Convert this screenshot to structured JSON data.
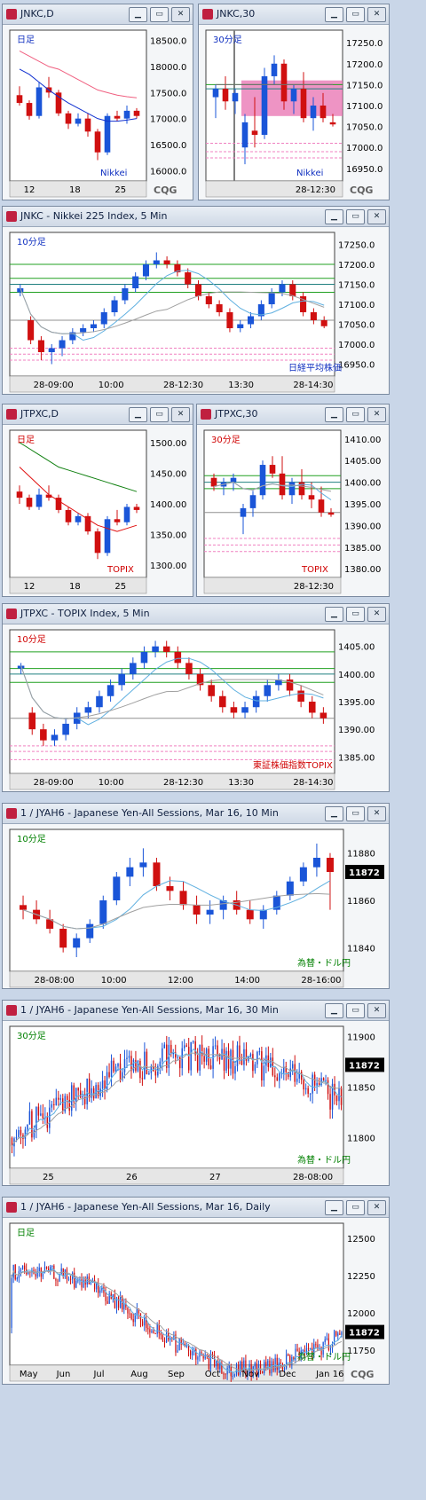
{
  "windows": [
    {
      "id": "jnkc-d",
      "title": "JNKC,D",
      "tf_label": "日足",
      "index_label": "Nikkei",
      "y_ticks": [
        "18500.0",
        "18000.0",
        "17500.0",
        "17000.0",
        "16500.0",
        "16000.0"
      ],
      "x_ticks": [
        "12",
        "18",
        "25"
      ],
      "logo": "CQG"
    },
    {
      "id": "jnkc-30",
      "title": "JNKC,30",
      "tf_label": "30分足",
      "index_label": "Nikkei",
      "y_ticks": [
        "17250.0",
        "17200.0",
        "17150.0",
        "17100.0",
        "17050.0",
        "17000.0",
        "16950.0"
      ],
      "x_ticks": [
        "28-12:30"
      ],
      "logo": "CQG"
    },
    {
      "id": "jnkc-5",
      "title": "JNKC - Nikkei 225 Index, 5 Min",
      "tf_label": "10分足",
      "index_label": "日経平均株価",
      "y_ticks": [
        "17250.0",
        "17200.0",
        "17150.0",
        "17100.0",
        "17050.0",
        "17000.0",
        "16950.0"
      ],
      "x_ticks": [
        "28-09:00",
        "10:00",
        "28-12:30",
        "13:30",
        "28-14:30"
      ]
    },
    {
      "id": "jtpxc-d",
      "title": "JTPXC,D",
      "tf_label": "日足",
      "index_label": "TOPIX",
      "y_ticks": [
        "1500.00",
        "1450.00",
        "1400.00",
        "1350.00",
        "1300.00"
      ],
      "x_ticks": [
        "12",
        "18",
        "25"
      ]
    },
    {
      "id": "jtpxc-30",
      "title": "JTPXC,30",
      "tf_label": "30分足",
      "index_label": "TOPIX",
      "y_ticks": [
        "1410.00",
        "1405.00",
        "1400.00",
        "1395.00",
        "1390.00",
        "1385.00",
        "1380.00"
      ],
      "x_ticks": [
        "28-12:30"
      ]
    },
    {
      "id": "jtpxc-5",
      "title": "JTPXC - TOPIX Index, 5 Min",
      "tf_label": "10分足",
      "index_label": "東証株価指数TOPIX",
      "y_ticks": [
        "1405.00",
        "1400.00",
        "1395.00",
        "1390.00",
        "1385.00"
      ],
      "x_ticks": [
        "28-09:00",
        "10:00",
        "28-12:30",
        "13:30",
        "28-14:30"
      ]
    },
    {
      "id": "jyah6-10",
      "title": "1 / JYAH6 - Japanese Yen-All Sessions, Mar 16, 10 Min",
      "tf_label": "10分足",
      "index_label": "為替・ドル円",
      "y_ticks": [
        "11880",
        "11860",
        "11840"
      ],
      "x_ticks": [
        "28-08:00",
        "10:00",
        "12:00",
        "14:00",
        "28-16:00"
      ],
      "last_price": "11872"
    },
    {
      "id": "jyah6-30",
      "title": "1 / JYAH6 - Japanese Yen-All Sessions, Mar 16, 30 Min",
      "tf_label": "30分足",
      "index_label": "為替・ドル円",
      "y_ticks": [
        "11900",
        "11850",
        "11800"
      ],
      "x_ticks": [
        "25",
        "26",
        "27",
        "28-08:00"
      ],
      "last_price": "11872"
    },
    {
      "id": "jyah6-d",
      "title": "1 / JYAH6 - Japanese Yen-All Sessions, Mar 16, Daily",
      "tf_label": "日足",
      "index_label": "為替・ドル円",
      "y_ticks": [
        "12500",
        "12250",
        "12000",
        "11750"
      ],
      "x_ticks": [
        "May",
        "Jun",
        "Jul",
        "Aug",
        "Sep",
        "Oct",
        "Nov",
        "Dec",
        "Jan 16"
      ],
      "last_price": "11872",
      "logo": "CQG"
    }
  ],
  "chart_data": [
    {
      "type": "candlestick",
      "title": "JNKC,D",
      "ylim": [
        15800,
        18700
      ],
      "candles": [
        [
          17450,
          17620,
          17250,
          17300
        ],
        [
          17300,
          17350,
          16980,
          17050
        ],
        [
          17050,
          17700,
          17000,
          17600
        ],
        [
          17600,
          17800,
          17400,
          17500
        ],
        [
          17500,
          17550,
          17050,
          17100
        ],
        [
          17100,
          17150,
          16800,
          16900
        ],
        [
          16900,
          17100,
          16850,
          17000
        ],
        [
          17000,
          17100,
          16650,
          16750
        ],
        [
          16750,
          16800,
          16200,
          16350
        ],
        [
          16350,
          17100,
          16300,
          17050
        ],
        [
          17050,
          17150,
          16950,
          17000
        ],
        [
          17000,
          17250,
          16900,
          17150
        ],
        [
          17150,
          17200,
          17000,
          17050
        ]
      ],
      "series": [
        {
          "name": "",
          "values": [
            18300,
            18200,
            18100,
            18000,
            17950,
            17850,
            17750,
            17650,
            17550,
            17500,
            17450,
            17420,
            17400
          ]
        },
        {
          "name": "",
          "values": [
            17950,
            17850,
            17700,
            17550,
            17420,
            17300,
            17200,
            17100,
            17000,
            16950,
            16950,
            16970,
            17000
          ]
        }
      ]
    },
    {
      "type": "candlestick",
      "title": "JNKC,30",
      "ylim": [
        16920,
        17280
      ],
      "candles": [
        [
          17120,
          17150,
          17070,
          17140
        ],
        [
          17140,
          17170,
          17090,
          17110
        ],
        [
          17110,
          17140,
          17080,
          17130
        ],
        [
          17000,
          17080,
          16960,
          17060
        ],
        [
          17040,
          17120,
          17000,
          17030
        ],
        [
          17030,
          17190,
          17020,
          17170
        ],
        [
          17170,
          17220,
          17150,
          17200
        ],
        [
          17200,
          17210,
          17090,
          17110
        ],
        [
          17110,
          17150,
          17080,
          17140
        ],
        [
          17140,
          17180,
          17060,
          17070
        ],
        [
          17070,
          17120,
          17040,
          17100
        ],
        [
          17100,
          17130,
          17060,
          17070
        ],
        [
          17060,
          17080,
          17050,
          17055
        ]
      ],
      "series": [
        {
          "name": "",
          "values": [
            17150,
            17150,
            17150,
            17150,
            17150,
            17150,
            17150,
            17150,
            17150,
            17150,
            17150,
            17150,
            17150
          ]
        }
      ]
    },
    {
      "type": "candlestick",
      "title": "JNKC - Nikkei 225 Index, 5 Min",
      "ylim": [
        16920,
        17280
      ],
      "candles": [
        [
          17130,
          17150,
          17120,
          17140
        ],
        [
          17060,
          17070,
          17000,
          17010
        ],
        [
          17010,
          17020,
          16960,
          16980
        ],
        [
          16980,
          17000,
          16950,
          16990
        ],
        [
          16990,
          17020,
          16970,
          17010
        ],
        [
          17010,
          17040,
          17000,
          17030
        ],
        [
          17030,
          17050,
          17020,
          17040
        ],
        [
          17040,
          17060,
          17030,
          17050
        ],
        [
          17050,
          17090,
          17040,
          17080
        ],
        [
          17080,
          17120,
          17070,
          17110
        ],
        [
          17110,
          17150,
          17100,
          17140
        ],
        [
          17140,
          17180,
          17130,
          17170
        ],
        [
          17170,
          17210,
          17160,
          17200
        ],
        [
          17200,
          17230,
          17190,
          17210
        ],
        [
          17210,
          17220,
          17190,
          17200
        ],
        [
          17200,
          17210,
          17170,
          17180
        ],
        [
          17180,
          17190,
          17140,
          17150
        ],
        [
          17150,
          17160,
          17110,
          17120
        ],
        [
          17120,
          17130,
          17090,
          17100
        ],
        [
          17100,
          17110,
          17070,
          17080
        ],
        [
          17080,
          17090,
          17030,
          17040
        ],
        [
          17040,
          17060,
          17030,
          17050
        ],
        [
          17050,
          17080,
          17040,
          17070
        ],
        [
          17070,
          17110,
          17060,
          17100
        ],
        [
          17100,
          17140,
          17090,
          17130
        ],
        [
          17130,
          17160,
          17120,
          17150
        ],
        [
          17150,
          17160,
          17110,
          17120
        ],
        [
          17120,
          17130,
          17070,
          17080
        ],
        [
          17080,
          17090,
          17050,
          17060
        ],
        [
          17060,
          17070,
          17040,
          17045
        ]
      ]
    },
    {
      "type": "candlestick",
      "title": "JTPXC,D",
      "ylim": [
        1280,
        1520
      ],
      "candles": [
        [
          1420,
          1430,
          1400,
          1410
        ],
        [
          1410,
          1415,
          1390,
          1395
        ],
        [
          1395,
          1425,
          1390,
          1415
        ],
        [
          1415,
          1430,
          1405,
          1410
        ],
        [
          1410,
          1415,
          1385,
          1390
        ],
        [
          1390,
          1395,
          1365,
          1370
        ],
        [
          1370,
          1385,
          1365,
          1380
        ],
        [
          1380,
          1385,
          1350,
          1355
        ],
        [
          1355,
          1360,
          1310,
          1320
        ],
        [
          1320,
          1380,
          1315,
          1375
        ],
        [
          1375,
          1390,
          1365,
          1370
        ],
        [
          1370,
          1400,
          1365,
          1395
        ],
        [
          1395,
          1400,
          1385,
          1390
        ]
      ],
      "series": [
        {
          "name": "",
          "values": [
            1500,
            1490,
            1480,
            1470,
            1460,
            1455,
            1450,
            1445,
            1440,
            1435,
            1430,
            1425,
            1420
          ]
        },
        {
          "name": "",
          "values": [
            1460,
            1445,
            1430,
            1415,
            1405,
            1395,
            1385,
            1375,
            1365,
            1360,
            1355,
            1360,
            1365
          ]
        }
      ]
    },
    {
      "type": "candlestick",
      "title": "JTPXC,30",
      "ylim": [
        1378,
        1412
      ],
      "candles": [
        [
          1401,
          1402,
          1398,
          1399
        ],
        [
          1399,
          1401,
          1397,
          1400
        ],
        [
          1400,
          1402,
          1398,
          1401
        ],
        [
          1392,
          1395,
          1388,
          1394
        ],
        [
          1394,
          1398,
          1392,
          1397
        ],
        [
          1397,
          1405,
          1396,
          1404
        ],
        [
          1404,
          1406,
          1401,
          1402
        ],
        [
          1402,
          1406,
          1396,
          1397
        ],
        [
          1397,
          1401,
          1395,
          1400
        ],
        [
          1400,
          1403,
          1396,
          1397
        ],
        [
          1397,
          1400,
          1394,
          1396
        ],
        [
          1396,
          1399,
          1392,
          1393
        ],
        [
          1393,
          1394,
          1392,
          1392.5
        ]
      ]
    },
    {
      "type": "candlestick",
      "title": "JTPXC - TOPIX Index, 5 Min",
      "ylim": [
        1382,
        1408
      ],
      "candles": [
        [
          1401,
          1402,
          1400,
          1401.5
        ],
        [
          1393,
          1394,
          1389,
          1390
        ],
        [
          1390,
          1391,
          1387,
          1388
        ],
        [
          1388,
          1390,
          1387,
          1389
        ],
        [
          1389,
          1392,
          1388,
          1391
        ],
        [
          1391,
          1394,
          1390,
          1393
        ],
        [
          1393,
          1395,
          1392,
          1394
        ],
        [
          1394,
          1397,
          1393,
          1396
        ],
        [
          1396,
          1399,
          1395,
          1398
        ],
        [
          1398,
          1401,
          1397,
          1400
        ],
        [
          1400,
          1403,
          1399,
          1402
        ],
        [
          1402,
          1405,
          1401,
          1404
        ],
        [
          1404,
          1406,
          1403,
          1405
        ],
        [
          1405,
          1406,
          1403,
          1404
        ],
        [
          1404,
          1405,
          1401,
          1402
        ],
        [
          1402,
          1403,
          1399,
          1400
        ],
        [
          1400,
          1401,
          1397,
          1398
        ],
        [
          1398,
          1399,
          1395,
          1396
        ],
        [
          1396,
          1397,
          1393,
          1394
        ],
        [
          1394,
          1395,
          1392,
          1393
        ],
        [
          1393,
          1395,
          1392,
          1394
        ],
        [
          1394,
          1397,
          1393,
          1396
        ],
        [
          1396,
          1399,
          1395,
          1398
        ],
        [
          1398,
          1400,
          1397,
          1399
        ],
        [
          1399,
          1400,
          1396,
          1397
        ],
        [
          1397,
          1398,
          1394,
          1395
        ],
        [
          1395,
          1396,
          1392,
          1393
        ],
        [
          1393,
          1394,
          1391,
          1392
        ]
      ]
    },
    {
      "type": "candlestick",
      "title": "1 / JYAH6 - Japanese Yen-All Sessions, Mar 16, 10 Min",
      "ylim": [
        11830,
        11890
      ],
      "candles": [
        [
          11858,
          11862,
          11852,
          11856
        ],
        [
          11856,
          11860,
          11850,
          11852
        ],
        [
          11852,
          11856,
          11846,
          11848
        ],
        [
          11848,
          11850,
          11838,
          11840
        ],
        [
          11840,
          11846,
          11836,
          11844
        ],
        [
          11844,
          11852,
          11842,
          11850
        ],
        [
          11850,
          11862,
          11848,
          11860
        ],
        [
          11860,
          11872,
          11858,
          11870
        ],
        [
          11870,
          11878,
          11866,
          11874
        ],
        [
          11874,
          11882,
          11870,
          11876
        ],
        [
          11876,
          11878,
          11864,
          11866
        ],
        [
          11866,
          11870,
          11860,
          11864
        ],
        [
          11864,
          11868,
          11856,
          11858
        ],
        [
          11858,
          11862,
          11850,
          11854
        ],
        [
          11854,
          11860,
          11850,
          11856
        ],
        [
          11856,
          11862,
          11852,
          11860
        ],
        [
          11860,
          11864,
          11854,
          11856
        ],
        [
          11856,
          11860,
          11850,
          11852
        ],
        [
          11852,
          11858,
          11848,
          11856
        ],
        [
          11856,
          11864,
          11854,
          11862
        ],
        [
          11862,
          11870,
          11860,
          11868
        ],
        [
          11868,
          11876,
          11866,
          11874
        ],
        [
          11874,
          11884,
          11870,
          11878
        ],
        [
          11878,
          11880,
          11856,
          11872
        ]
      ]
    },
    {
      "type": "candlestick",
      "title": "1 / JYAH6 - Japanese Yen-All Sessions, Mar 16, 30 Min",
      "ylim": [
        11770,
        11910
      ]
    },
    {
      "type": "candlestick",
      "title": "1 / JYAH6 - Japanese Yen-All Sessions, Mar 16, Daily",
      "ylim": [
        11650,
        12600
      ]
    }
  ]
}
